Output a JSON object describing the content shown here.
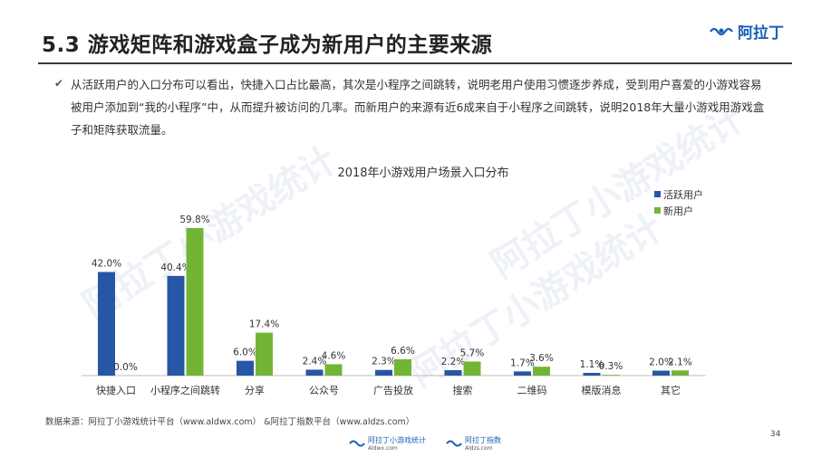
{
  "header": {
    "title": "5.3 游戏矩阵和游戏盒子成为新用户的主要来源",
    "logo_text": "阿拉丁"
  },
  "bullet": {
    "text": "从活跃用户的入口分布可以看出，快捷入口占比最高，其次是小程序之间跳转，说明老用户使用习惯逐步养成，受到用户喜爱的小游戏容易被用户添加到“我的小程序”中，从而提升被访问的几率。而新用户的来源有近6成来自于小程序之间跳转，说明2018年大量小游戏用游戏盒子和矩阵获取流量。"
  },
  "watermark": {
    "text": "阿拉丁小游戏统计"
  },
  "chart_data": {
    "type": "bar",
    "title": "2018年小游戏用户场景入口分布",
    "categories": [
      "快捷入口",
      "小程序之间跳转",
      "分享",
      "公众号",
      "广告投放",
      "搜索",
      "二维码",
      "模版消息",
      "其它"
    ],
    "series": [
      {
        "name": "活跃用户",
        "values": [
          42.0,
          40.4,
          6.0,
          2.4,
          2.3,
          2.2,
          1.7,
          1.1,
          2.0
        ],
        "labels": [
          "42.0%",
          "40.4%",
          "6.0%",
          "2.4%",
          "2.3%",
          "2.2%",
          "1.7%",
          "1.1%",
          "2.0%"
        ],
        "color": "#2756a6"
      },
      {
        "name": "新用户",
        "values": [
          0.0,
          59.8,
          17.4,
          4.6,
          6.6,
          5.7,
          3.6,
          0.3,
          2.1
        ],
        "labels": [
          "0.0%",
          "59.8%",
          "17.4%",
          "4.6%",
          "6.6%",
          "5.7%",
          "3.6%",
          "0.3%",
          "2.1%"
        ],
        "color": "#72b536"
      }
    ],
    "ylim": [
      0,
      62
    ],
    "legend": "right",
    "grid": false
  },
  "footer": {
    "source": "数据来源：阿拉丁小游戏统计平台（www.aldwx.com）  &阿拉丁指数平台（www.aldzs.com）",
    "page_number": "34",
    "logo1": "阿拉丁小游戏统计",
    "logo1_sub": "Aldwx.com",
    "logo2": "阿拉丁指数",
    "logo2_sub": "Aldzs.com"
  }
}
